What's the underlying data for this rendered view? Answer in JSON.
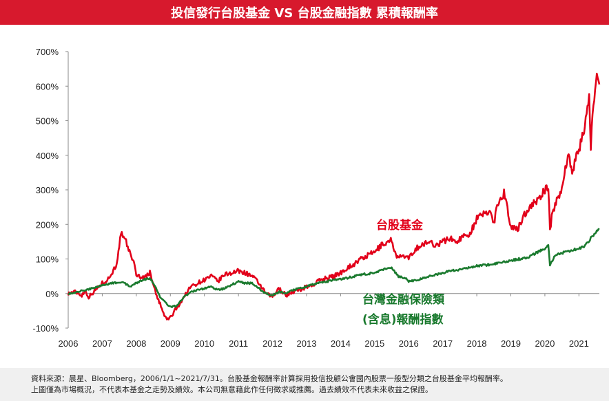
{
  "header": {
    "title": "投信發行台股基金 VS 台股金融指數 累積報酬率"
  },
  "footnote": {
    "line1": "資料來源：晨星、Bloomberg，2006/1/1~2021/7/31。台股基金報酬率計算採用投信投顧公會國內股票一般型分類之台股基金平均報酬率。",
    "line2": "上圖僅為市場概況，不代表本基金之走勢及績效。本公司無意藉此作任何徵求或推薦。過去績效不代表未來收益之保證。"
  },
  "colors": {
    "title_bg": "#d7192d",
    "fund": "#e2001a",
    "finance": "#1a7a2e",
    "footnote_bg": "#f0f0f0"
  },
  "chart_data": {
    "type": "line",
    "title": "投信發行台股基金 VS 台股金融指數 累積報酬率",
    "xlabel": "",
    "ylabel": "",
    "x_ticks": [
      "2006",
      "2007",
      "2008",
      "2009",
      "2010",
      "2011",
      "2012",
      "2013",
      "2014",
      "2015",
      "2016",
      "2017",
      "2018",
      "2019",
      "2020",
      "2021"
    ],
    "y_ticks": [
      "700%",
      "600%",
      "500%",
      "400%",
      "300%",
      "200%",
      "100%",
      "0%",
      "-100%"
    ],
    "xlim": [
      2006.0,
      2021.6
    ],
    "ylim": [
      -100,
      700
    ],
    "grid": false,
    "series": [
      {
        "name": "台股基金",
        "label_lines": [
          "台股基金"
        ],
        "color": "#e2001a",
        "points": [
          [
            2006.0,
            0
          ],
          [
            2006.2,
            5
          ],
          [
            2006.4,
            -5
          ],
          [
            2006.5,
            8
          ],
          [
            2006.6,
            -10
          ],
          [
            2006.8,
            10
          ],
          [
            2007.0,
            30
          ],
          [
            2007.2,
            45
          ],
          [
            2007.4,
            80
          ],
          [
            2007.5,
            130
          ],
          [
            2007.55,
            180
          ],
          [
            2007.6,
            160
          ],
          [
            2007.7,
            150
          ],
          [
            2007.8,
            120
          ],
          [
            2007.9,
            100
          ],
          [
            2008.0,
            55
          ],
          [
            2008.2,
            45
          ],
          [
            2008.4,
            60
          ],
          [
            2008.5,
            30
          ],
          [
            2008.6,
            -10
          ],
          [
            2008.7,
            -30
          ],
          [
            2008.8,
            -60
          ],
          [
            2008.9,
            -75
          ],
          [
            2009.0,
            -70
          ],
          [
            2009.1,
            -55
          ],
          [
            2009.2,
            -40
          ],
          [
            2009.4,
            -10
          ],
          [
            2009.6,
            20
          ],
          [
            2009.8,
            30
          ],
          [
            2010.0,
            40
          ],
          [
            2010.2,
            50
          ],
          [
            2010.4,
            35
          ],
          [
            2010.6,
            55
          ],
          [
            2010.8,
            60
          ],
          [
            2011.0,
            65
          ],
          [
            2011.2,
            60
          ],
          [
            2011.4,
            50
          ],
          [
            2011.6,
            30
          ],
          [
            2011.8,
            0
          ],
          [
            2012.0,
            -10
          ],
          [
            2012.2,
            15
          ],
          [
            2012.4,
            -5
          ],
          [
            2012.6,
            5
          ],
          [
            2012.8,
            10
          ],
          [
            2013.0,
            20
          ],
          [
            2013.2,
            25
          ],
          [
            2013.4,
            40
          ],
          [
            2013.6,
            45
          ],
          [
            2013.8,
            50
          ],
          [
            2014.0,
            60
          ],
          [
            2014.2,
            75
          ],
          [
            2014.4,
            85
          ],
          [
            2014.6,
            100
          ],
          [
            2014.8,
            110
          ],
          [
            2015.0,
            120
          ],
          [
            2015.2,
            140
          ],
          [
            2015.4,
            150
          ],
          [
            2015.5,
            155
          ],
          [
            2015.6,
            120
          ],
          [
            2015.7,
            100
          ],
          [
            2015.8,
            110
          ],
          [
            2016.0,
            100
          ],
          [
            2016.2,
            130
          ],
          [
            2016.4,
            140
          ],
          [
            2016.6,
            150
          ],
          [
            2016.8,
            140
          ],
          [
            2017.0,
            150
          ],
          [
            2017.2,
            160
          ],
          [
            2017.4,
            150
          ],
          [
            2017.6,
            165
          ],
          [
            2017.8,
            175
          ],
          [
            2018.0,
            215
          ],
          [
            2018.2,
            230
          ],
          [
            2018.4,
            240
          ],
          [
            2018.5,
            200
          ],
          [
            2018.6,
            260
          ],
          [
            2018.8,
            290
          ],
          [
            2018.9,
            250
          ],
          [
            2019.0,
            190
          ],
          [
            2019.2,
            185
          ],
          [
            2019.4,
            230
          ],
          [
            2019.6,
            255
          ],
          [
            2019.8,
            270
          ],
          [
            2020.0,
            300
          ],
          [
            2020.1,
            310
          ],
          [
            2020.15,
            180
          ],
          [
            2020.2,
            220
          ],
          [
            2020.3,
            260
          ],
          [
            2020.5,
            300
          ],
          [
            2020.6,
            370
          ],
          [
            2020.7,
            400
          ],
          [
            2020.8,
            350
          ],
          [
            2021.0,
            420
          ],
          [
            2021.1,
            450
          ],
          [
            2021.2,
            500
          ],
          [
            2021.3,
            560
          ],
          [
            2021.35,
            430
          ],
          [
            2021.4,
            520
          ],
          [
            2021.5,
            610
          ],
          [
            2021.55,
            640
          ],
          [
            2021.6,
            605
          ]
        ]
      },
      {
        "name": "台灣金融保險類(含息)報酬指數",
        "label_lines": [
          "台灣金融保險類",
          "(含息)報酬指數"
        ],
        "color": "#1a7a2e",
        "points": [
          [
            2006.0,
            0
          ],
          [
            2006.3,
            5
          ],
          [
            2006.6,
            12
          ],
          [
            2007.0,
            25
          ],
          [
            2007.3,
            30
          ],
          [
            2007.6,
            35
          ],
          [
            2007.8,
            20
          ],
          [
            2008.0,
            30
          ],
          [
            2008.2,
            40
          ],
          [
            2008.4,
            45
          ],
          [
            2008.5,
            30
          ],
          [
            2008.7,
            -10
          ],
          [
            2008.9,
            -30
          ],
          [
            2009.0,
            -40
          ],
          [
            2009.2,
            -35
          ],
          [
            2009.4,
            -10
          ],
          [
            2009.6,
            5
          ],
          [
            2009.8,
            10
          ],
          [
            2010.0,
            15
          ],
          [
            2010.2,
            20
          ],
          [
            2010.4,
            10
          ],
          [
            2010.6,
            15
          ],
          [
            2010.8,
            25
          ],
          [
            2011.0,
            35
          ],
          [
            2011.2,
            30
          ],
          [
            2011.4,
            30
          ],
          [
            2011.6,
            15
          ],
          [
            2011.8,
            0
          ],
          [
            2012.0,
            -5
          ],
          [
            2012.2,
            5
          ],
          [
            2012.4,
            0
          ],
          [
            2012.6,
            10
          ],
          [
            2012.8,
            15
          ],
          [
            2013.0,
            20
          ],
          [
            2013.3,
            30
          ],
          [
            2013.6,
            35
          ],
          [
            2013.9,
            40
          ],
          [
            2014.2,
            45
          ],
          [
            2014.6,
            55
          ],
          [
            2015.0,
            60
          ],
          [
            2015.3,
            70
          ],
          [
            2015.5,
            75
          ],
          [
            2015.7,
            50
          ],
          [
            2015.9,
            45
          ],
          [
            2016.0,
            35
          ],
          [
            2016.3,
            40
          ],
          [
            2016.6,
            50
          ],
          [
            2017.0,
            60
          ],
          [
            2017.5,
            70
          ],
          [
            2018.0,
            80
          ],
          [
            2018.5,
            85
          ],
          [
            2019.0,
            95
          ],
          [
            2019.5,
            105
          ],
          [
            2020.0,
            130
          ],
          [
            2020.1,
            140
          ],
          [
            2020.15,
            80
          ],
          [
            2020.3,
            110
          ],
          [
            2020.6,
            120
          ],
          [
            2021.0,
            130
          ],
          [
            2021.2,
            140
          ],
          [
            2021.35,
            160
          ],
          [
            2021.5,
            180
          ],
          [
            2021.6,
            185
          ]
        ]
      }
    ]
  }
}
